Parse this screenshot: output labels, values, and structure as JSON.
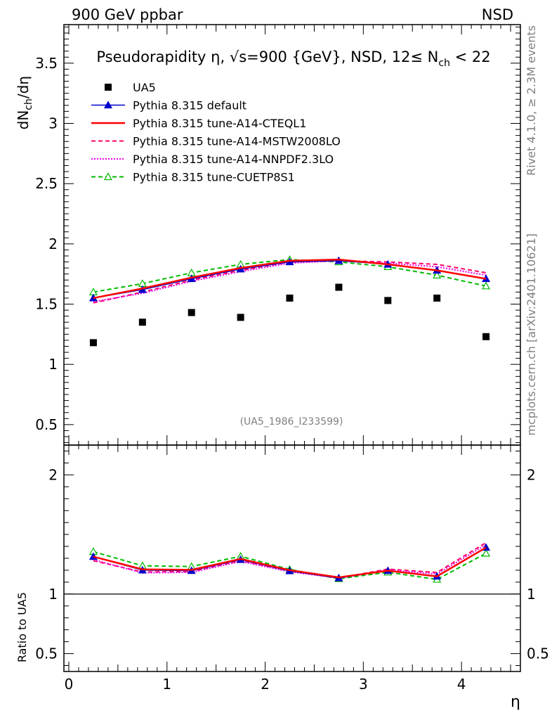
{
  "header": {
    "left": "900 GeV ppbar",
    "right": "NSD"
  },
  "side_text": {
    "rivet": "Rivet 4.1.0, ≥ 2.3M events",
    "mcplots": "mcplots.cern.ch [arXiv:2401.10621]"
  },
  "chart_data": {
    "type": "line",
    "title": "Pseudorapidity η, √s=900 {GeV}, NSD, 12≤ N_ch < 22",
    "title_parts": {
      "main": "Pseudorapidity η, √s=900 {GeV}, NSD, 12≤ N",
      "sub": "ch",
      "tail": " < 22"
    },
    "xlabel": "η",
    "ylabel": "dN_ch/dη",
    "ylabel_parts": {
      "a": "dN",
      "sub": "ch",
      "b": "/dη"
    },
    "ratio_ylabel": "Ratio to UA5",
    "analysis_tag": "(UA5_1986_I233599)",
    "xlim": [
      -0.05,
      4.6
    ],
    "ylim": [
      0.33,
      3.82
    ],
    "ratio_ylim": [
      0.35,
      2.25
    ],
    "x_ticks": [
      "0",
      "1",
      "2",
      "3",
      "4"
    ],
    "y_ticks": [
      "0.5",
      "1",
      "1.5",
      "2",
      "2.5",
      "3",
      "3.5"
    ],
    "ratio_ticks": [
      "0.5",
      "1",
      "2"
    ],
    "x": [
      0.25,
      0.75,
      1.25,
      1.75,
      2.25,
      2.75,
      3.25,
      3.75,
      4.25
    ],
    "data": {
      "name": "UA5",
      "values": [
        1.18,
        1.35,
        1.43,
        1.39,
        1.55,
        1.64,
        1.53,
        1.55,
        1.23
      ]
    },
    "series": [
      {
        "name": "Pythia 8.315 default",
        "color": "#0000cc",
        "style": "solid-triangle",
        "values": [
          1.55,
          1.62,
          1.71,
          1.79,
          1.85,
          1.86,
          1.83,
          1.78,
          1.71
        ]
      },
      {
        "name": "Pythia 8.315 tune-A14-CTEQL1",
        "color": "#ff0000",
        "style": "solid-thick",
        "values": [
          1.55,
          1.63,
          1.72,
          1.8,
          1.86,
          1.87,
          1.83,
          1.78,
          1.71
        ]
      },
      {
        "name": "Pythia 8.315 tune-A14-MSTW2008LO",
        "color": "#ff0066",
        "style": "dashed",
        "values": [
          1.51,
          1.6,
          1.7,
          1.78,
          1.85,
          1.86,
          1.85,
          1.83,
          1.76
        ]
      },
      {
        "name": "Pythia 8.315 tune-A14-NNPDF2.3LO",
        "color": "#ee00ee",
        "style": "dotted",
        "values": [
          1.52,
          1.59,
          1.69,
          1.77,
          1.84,
          1.86,
          1.84,
          1.81,
          1.74
        ]
      },
      {
        "name": "Pythia 8.315 tune-CUETP8S1",
        "color": "#00bb00",
        "style": "dashed-triangle",
        "values": [
          1.6,
          1.67,
          1.76,
          1.83,
          1.87,
          1.85,
          1.81,
          1.74,
          1.65
        ]
      }
    ]
  }
}
